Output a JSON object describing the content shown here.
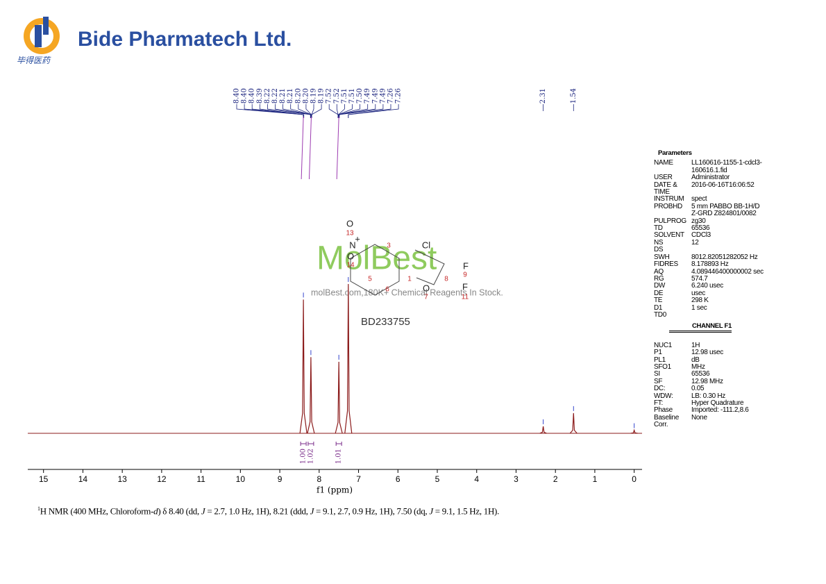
{
  "header": {
    "company": "Bide Pharmatech Ltd.",
    "company_cn": "毕得医药"
  },
  "watermark": {
    "brand": "MolBest",
    "tagline": "molBest.com,180K+ Chemical Reagents In Stock.",
    "code": "BD233755",
    "atoms": [
      "O",
      "13",
      "N",
      "+",
      "O",
      "14",
      "3",
      "Cl",
      "5",
      "6",
      "1",
      "8",
      "F",
      "9",
      "O",
      "7",
      "F",
      "11"
    ]
  },
  "chart_data": {
    "type": "stick",
    "x_label": "f1 (ppm)",
    "xlim": [
      15.4,
      -0.2
    ],
    "xticks": [
      15,
      14,
      13,
      12,
      11,
      10,
      9,
      8,
      7,
      6,
      5,
      4,
      3,
      2,
      1,
      0
    ],
    "ylim": [
      0,
      100
    ],
    "color": "#8b1a1a",
    "x": [
      8.4,
      8.21,
      7.5,
      7.26,
      2.31,
      1.54,
      0.0
    ],
    "values": [
      86,
      49,
      46,
      96,
      4.5,
      13,
      2
    ],
    "peak_labels": [
      {
        "value": 8.4,
        "label": "8.40"
      },
      {
        "value": 8.4,
        "label": "8.40"
      },
      {
        "value": 8.4,
        "label": "8.40"
      },
      {
        "value": 8.39,
        "label": "8.39"
      },
      {
        "value": 8.22,
        "label": "8.22"
      },
      {
        "value": 8.22,
        "label": "8.22"
      },
      {
        "value": 8.21,
        "label": "8.21"
      },
      {
        "value": 8.21,
        "label": "8.21"
      },
      {
        "value": 8.2,
        "label": "8.20"
      },
      {
        "value": 8.2,
        "label": "8.20"
      },
      {
        "value": 8.19,
        "label": "8.19"
      },
      {
        "value": 8.19,
        "label": "8.19"
      },
      {
        "value": 7.52,
        "label": "7.52"
      },
      {
        "value": 7.52,
        "label": "7.52"
      },
      {
        "value": 7.51,
        "label": "7.51"
      },
      {
        "value": 7.51,
        "label": "7.51"
      },
      {
        "value": 7.5,
        "label": "7.50"
      },
      {
        "value": 7.49,
        "label": "7.49"
      },
      {
        "value": 7.49,
        "label": "7.49"
      },
      {
        "value": 7.49,
        "label": "7.49"
      },
      {
        "value": 7.26,
        "label": "7.26"
      },
      {
        "value": 7.26,
        "label": "7.26"
      },
      {
        "value": 2.31,
        "label": "2.31"
      },
      {
        "value": 1.54,
        "label": "1.54"
      }
    ],
    "integrals": [
      {
        "x": 8.4,
        "value": 1,
        "label": "1.00"
      },
      {
        "x": 8.21,
        "value": 1.02,
        "label": "1.02"
      },
      {
        "x": 7.5,
        "value": 1.01,
        "label": "1.01"
      }
    ]
  },
  "parameters": {
    "title": "Parameters",
    "channel": "CHANNEL F1",
    "rows": [
      [
        "NAME",
        "LL160616-1155-1-cdcl3-160616.1.fid"
      ],
      [
        "USER",
        "Administrator"
      ],
      [
        "DATE & TIME",
        "2016-06-16T16:06:52"
      ],
      [
        "INSTRUM",
        "spect"
      ],
      [
        "PROBHD",
        "5 mm PABBO BB-1H/D Z-GRD Z824801/0082"
      ],
      [
        "PULPROG",
        "zg30"
      ],
      [
        "TD",
        "65536"
      ],
      [
        "SOLVENT",
        "CDCl3"
      ],
      [
        "NS",
        "12"
      ],
      [
        "DS"
      ],
      [
        "SWH",
        "8012.82051282052 Hz"
      ],
      [
        "FIDRES",
        "8.178893 Hz"
      ],
      [
        "AQ",
        "4.089446400000002 sec"
      ],
      [
        "RG",
        "574.7"
      ],
      [
        "DW",
        "6.240 usec"
      ],
      [
        "DE",
        "usec"
      ],
      [
        "TE",
        "298 K"
      ],
      [
        "D1",
        "1 sec"
      ],
      [
        "TD0"
      ]
    ],
    "channel_rows": [
      [
        "NUC1",
        "1H"
      ],
      [
        "P1",
        "12.98 usec"
      ],
      [
        "PL1",
        "dB"
      ],
      [
        "SFO1",
        "MHz"
      ],
      [
        "SI",
        "65536"
      ],
      [
        "SF",
        "12.98 MHz"
      ],
      [
        "DC:",
        "0.05"
      ],
      [
        "WDW:",
        "LB: 0.30 Hz"
      ],
      [
        "FT:",
        "Hyper Quadrature"
      ],
      [
        "Phase",
        "Imported: -111.2,8.6"
      ],
      [
        "Baseline Corr.",
        "None"
      ]
    ]
  },
  "caption": [
    "1",
    "H NMR (400 MHz, Chloroform-",
    "d",
    ") δ 8.40 (dd, ",
    "J",
    " = 2.7, 1.0 Hz, 1H), 8.21 (ddd, ",
    "J",
    " = 9.1, 2.7, 0.9 Hz, 1H), 7.50 (dq, ",
    "J",
    " = 9.1, 1.5 Hz, 1H)."
  ]
}
